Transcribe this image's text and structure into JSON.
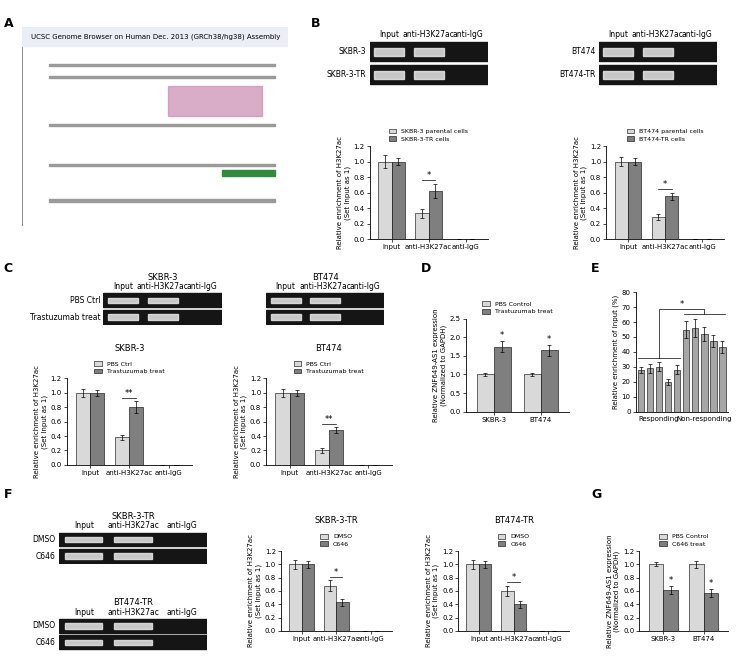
{
  "panel_letters": [
    "A",
    "B",
    "C",
    "D",
    "E",
    "F",
    "G"
  ],
  "browser": {
    "title": "UCSC Genome Browser on Human Dec. 2013 (GRCh38/hg38) Assembly"
  },
  "gels": [
    {
      "lanes": [
        "Input",
        "anti-H3K27ac",
        "anti-IgG"
      ],
      "rows": [
        "SKBR-3",
        "SKBR-3-TR"
      ],
      "bands": [
        true,
        true,
        false
      ]
    },
    {
      "lanes": [
        "Input",
        "anti-H3K27ac",
        "anti-IgG"
      ],
      "rows": [
        "BT474",
        "BT474-TR"
      ],
      "bands": [
        true,
        true,
        false
      ]
    },
    {
      "title": "SKBR-3",
      "lanes": [
        "Input",
        "anti-H3K27ac",
        "anti-IgG"
      ],
      "rows": [
        "PBS Ctrl",
        "Trastuzumab treat"
      ],
      "bands": [
        true,
        true,
        false
      ]
    },
    {
      "title": "BT474",
      "lanes": [
        "Input",
        "anti-H3K27ac",
        "anti-IgG"
      ],
      "rows": [
        null,
        null
      ],
      "bands": [
        true,
        true,
        false
      ]
    },
    {
      "title": "SKBR-3-TR",
      "lanes": [
        "Input",
        "anti-H3K27ac",
        "anti-IgG"
      ],
      "rows": [
        "DMSO",
        "C646"
      ],
      "bands": [
        true,
        true,
        false
      ]
    },
    {
      "title": "BT474-TR",
      "lanes": [
        "Input",
        "anti-H3K27ac",
        "anti-IgG"
      ],
      "rows": [
        "DMSO",
        "C646"
      ],
      "bands": [
        true,
        true,
        false
      ]
    }
  ],
  "chart_data": [
    {
      "type": "bar",
      "categories": [
        "Input",
        "anti-H3K27ac",
        "anti-IgG"
      ],
      "series": [
        {
          "name": "SKBR-3 parental cells",
          "color": "#d9d9d9",
          "values": [
            1.0,
            0.33,
            0.0
          ],
          "errors": [
            0.08,
            0.06,
            0.0
          ]
        },
        {
          "name": "SKBR-3-TR cells",
          "color": "#7f7f7f",
          "values": [
            1.0,
            0.62,
            0.0
          ],
          "errors": [
            0.05,
            0.09,
            0.0
          ]
        }
      ],
      "ylabel": "Relative enrichment of H3K27ac\n(Set Input as 1)",
      "ylim": [
        0.0,
        1.2
      ],
      "yticks": [
        0.0,
        0.2,
        0.4,
        0.6,
        0.8,
        1.0,
        1.2
      ],
      "annotations": [
        {
          "text": "*",
          "category": "anti-H3K27ac"
        }
      ]
    },
    {
      "type": "bar",
      "categories": [
        "Input",
        "anti-H3K27ac",
        "anti-IgG"
      ],
      "series": [
        {
          "name": "BT474 parental cells",
          "color": "#d9d9d9",
          "values": [
            1.0,
            0.28,
            0.0
          ],
          "errors": [
            0.06,
            0.04,
            0.0
          ]
        },
        {
          "name": "BT474-TR cells",
          "color": "#7f7f7f",
          "values": [
            1.0,
            0.55,
            0.0
          ],
          "errors": [
            0.05,
            0.05,
            0.0
          ]
        }
      ],
      "ylabel": "Relative enrichment of H3K27ac\n(Set Input as 1)",
      "ylim": [
        0.0,
        1.2
      ],
      "yticks": [
        0.0,
        0.2,
        0.4,
        0.6,
        0.8,
        1.0,
        1.2
      ],
      "annotations": [
        {
          "text": "*",
          "category": "anti-H3K27ac"
        }
      ]
    },
    {
      "type": "bar",
      "title": "SKBR-3",
      "categories": [
        "Input",
        "anti-H3K27ac",
        "anti-IgG"
      ],
      "series": [
        {
          "name": "PBS Ctrl",
          "color": "#d9d9d9",
          "values": [
            1.0,
            0.38,
            0.0
          ],
          "errors": [
            0.06,
            0.04,
            0.0
          ]
        },
        {
          "name": "Trastuzumab treat",
          "color": "#7f7f7f",
          "values": [
            1.0,
            0.8,
            0.0
          ],
          "errors": [
            0.04,
            0.08,
            0.0
          ]
        }
      ],
      "ylabel": "Relative enrichment of H3K27ac\n(Set Input as 1)",
      "ylim": [
        0.0,
        1.2
      ],
      "yticks": [
        0.0,
        0.2,
        0.4,
        0.6,
        0.8,
        1.0,
        1.2
      ],
      "annotations": [
        {
          "text": "**",
          "category": "anti-H3K27ac"
        }
      ]
    },
    {
      "type": "bar",
      "title": "BT474",
      "categories": [
        "Input",
        "anti-H3K27ac",
        "anti-IgG"
      ],
      "series": [
        {
          "name": "PBS Ctrl",
          "color": "#d9d9d9",
          "values": [
            1.0,
            0.2,
            0.0
          ],
          "errors": [
            0.06,
            0.03,
            0.0
          ]
        },
        {
          "name": "Trastuzumab treat",
          "color": "#7f7f7f",
          "values": [
            1.0,
            0.48,
            0.0
          ],
          "errors": [
            0.04,
            0.04,
            0.0
          ]
        }
      ],
      "ylabel": "Relative enrichment of H3K27ac\n(Set Input as 1)",
      "ylim": [
        0.0,
        1.2
      ],
      "yticks": [
        0.0,
        0.2,
        0.4,
        0.6,
        0.8,
        1.0,
        1.2
      ],
      "annotations": [
        {
          "text": "**",
          "category": "anti-H3K27ac"
        }
      ]
    },
    {
      "type": "bar",
      "categories": [
        "SKBR-3",
        "BT474"
      ],
      "series": [
        {
          "name": "PBS Control",
          "color": "#d9d9d9",
          "values": [
            1.0,
            1.0
          ],
          "errors": [
            0.04,
            0.05
          ]
        },
        {
          "name": "Trastuzumab treat",
          "color": "#7f7f7f",
          "values": [
            1.75,
            1.65
          ],
          "errors": [
            0.15,
            0.15
          ]
        }
      ],
      "ylabel": "Relative ZNF649-AS1 expression\n(Normalized to GAPDH)",
      "ylim": [
        0.0,
        2.5
      ],
      "yticks": [
        0.0,
        0.5,
        1.0,
        1.5,
        2.0,
        2.5
      ],
      "annotations": [
        {
          "text": "*",
          "category": "SKBR-3",
          "series": "Trastuzumab treat"
        },
        {
          "text": "*",
          "category": "BT474",
          "series": "Trastuzumab treat"
        }
      ]
    },
    {
      "type": "bar",
      "categories": [
        null,
        null,
        null,
        null,
        null,
        null,
        null,
        null,
        null,
        null
      ],
      "values": [
        28,
        29,
        30,
        20,
        28,
        55,
        56,
        52,
        47,
        43
      ],
      "errors": [
        2,
        3,
        3,
        2,
        3,
        6,
        6,
        5,
        4,
        4
      ],
      "color": "#a6a6a6",
      "groups": [
        {
          "label": "Responding",
          "start": 0,
          "end": 4
        },
        {
          "label": "Non-responding",
          "start": 5,
          "end": 9
        }
      ],
      "ylabel": "Relative enrichment of input (%)",
      "ylim": [
        0,
        80
      ],
      "yticks": [
        0,
        10,
        20,
        30,
        40,
        50,
        60,
        70,
        80
      ],
      "annotations": [
        {
          "text": "*",
          "between": [
            "Responding",
            "Non-responding"
          ]
        }
      ]
    },
    {
      "type": "bar",
      "title": "SKBR-3-TR",
      "categories": [
        "Input",
        "anti-H3K27ac",
        "anti-IgG"
      ],
      "series": [
        {
          "name": "DMSO",
          "color": "#d9d9d9",
          "values": [
            1.0,
            0.68,
            0.0
          ],
          "errors": [
            0.07,
            0.08,
            0.0
          ]
        },
        {
          "name": "C646",
          "color": "#7f7f7f",
          "values": [
            1.0,
            0.43,
            0.0
          ],
          "errors": [
            0.05,
            0.05,
            0.0
          ]
        }
      ],
      "ylabel": "Relative enrichment of H3K27ac\n(Set Input as 1)",
      "ylim": [
        0.0,
        1.2
      ],
      "yticks": [
        0.0,
        0.2,
        0.4,
        0.6,
        0.8,
        1.0,
        1.2
      ],
      "annotations": [
        {
          "text": "*",
          "category": "anti-H3K27ac"
        }
      ]
    },
    {
      "type": "bar",
      "title": "BT474-TR",
      "categories": [
        "Input",
        "anti-H3K27ac",
        "anti-IgG"
      ],
      "series": [
        {
          "name": "DMSO",
          "color": "#d9d9d9",
          "values": [
            1.0,
            0.6,
            0.0
          ],
          "errors": [
            0.07,
            0.08,
            0.0
          ]
        },
        {
          "name": "C646",
          "color": "#7f7f7f",
          "values": [
            1.0,
            0.4,
            0.0
          ],
          "errors": [
            0.05,
            0.05,
            0.0
          ]
        }
      ],
      "ylabel": "Relative enrichment of H3K27ac\n(Set Input as 1)",
      "ylim": [
        0.0,
        1.2
      ],
      "yticks": [
        0.0,
        0.2,
        0.4,
        0.6,
        0.8,
        1.0,
        1.2
      ],
      "annotations": [
        {
          "text": "*",
          "category": "anti-H3K27ac"
        }
      ]
    },
    {
      "type": "bar",
      "categories": [
        "SKBR-3",
        "BT474"
      ],
      "series": [
        {
          "name": "PBS Control",
          "color": "#d9d9d9",
          "values": [
            1.0,
            1.0
          ],
          "errors": [
            0.03,
            0.05
          ]
        },
        {
          "name": "C646 treat",
          "color": "#7f7f7f",
          "values": [
            0.62,
            0.57
          ],
          "errors": [
            0.06,
            0.06
          ]
        }
      ],
      "ylabel": "Relative ZNF649-AS1 expression\n(Normalized to GAPDH)",
      "ylim": [
        0.0,
        1.2
      ],
      "yticks": [
        0.0,
        0.2,
        0.4,
        0.6,
        0.8,
        1.0,
        1.2
      ],
      "annotations": [
        {
          "text": "*",
          "category": "SKBR-3",
          "series": "C646 treat"
        },
        {
          "text": "*",
          "category": "BT474",
          "series": "C646 treat"
        }
      ]
    }
  ]
}
